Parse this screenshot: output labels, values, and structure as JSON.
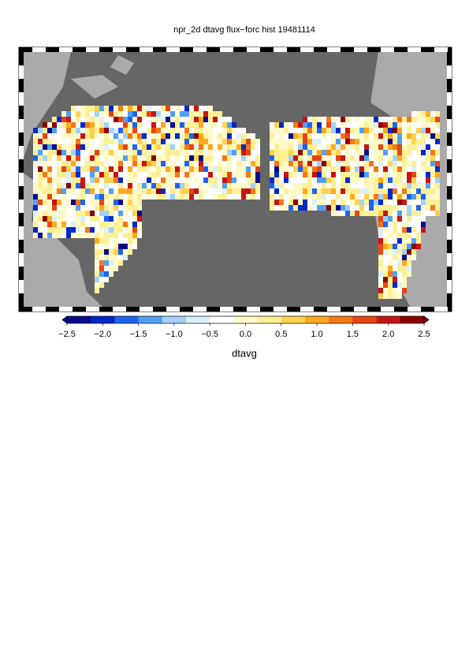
{
  "chart_data": {
    "type": "map",
    "title": "npr_2d dtavg flux−forc hist 19481114",
    "colorbar": {
      "label": "dtavg",
      "lim": [
        -2.5,
        2.5
      ],
      "ticks": [
        {
          "value": -2.5,
          "label": "−2.5"
        },
        {
          "value": -2,
          "label": "−2.0"
        },
        {
          "value": -1.5,
          "label": "−1.5"
        },
        {
          "value": -1,
          "label": "−1.0"
        },
        {
          "value": -0.5,
          "label": "−0.5"
        },
        {
          "value": 0,
          "label": "0.0"
        },
        0.5,
        {
          "value": 1,
          "label": "1.0"
        },
        1.5,
        {
          "value": 2,
          "label": "2.0"
        },
        2.5
      ],
      "colors": [
        "#0a0a8c",
        "#0028c8",
        "#1e64f0",
        "#50a0f5",
        "#a0d2fa",
        "#dcf0fa",
        "#ffffff",
        "#fffac8",
        "#fff096",
        "#ffd250",
        "#ffaa1e",
        "#f57814",
        "#e64614",
        "#c81414",
        "#8c0000"
      ]
    }
  }
}
